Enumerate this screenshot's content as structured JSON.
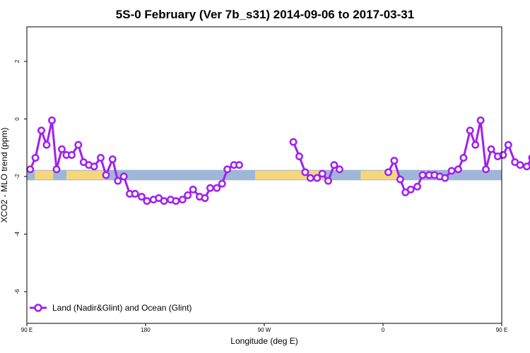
{
  "chart_data": {
    "type": "line",
    "title": "5S-0 February (Ver 7b_s31)   2014-09-06 to 2017-03-31",
    "xlabel": "Longitude (deg E)",
    "ylabel": "XCO2 - MLO trend (ppm)",
    "xlim": [
      90,
      450
    ],
    "ylim": [
      -7.1,
      3.2
    ],
    "x_ticks": [
      {
        "value": 90,
        "label": "90 E"
      },
      {
        "value": 180,
        "label": "180"
      },
      {
        "value": 270,
        "label": "90 W"
      },
      {
        "value": 360,
        "label": "0"
      },
      {
        "value": 450,
        "label": "90 E"
      },
      {
        "value": 540,
        "label": "180"
      }
    ],
    "y_ticks": [
      {
        "value": -6,
        "label": "-6"
      },
      {
        "value": -4,
        "label": "-4"
      },
      {
        "value": -2,
        "label": "-2"
      },
      {
        "value": 0,
        "label": "0"
      },
      {
        "value": 2,
        "label": "2"
      }
    ],
    "background_band": {
      "y_center": -1.95,
      "half_height": 0.18,
      "ocean_color": "#9fb6d7",
      "land_color": "#f5d77a",
      "land_ranges": [
        [
          96,
          110
        ],
        [
          120,
          150
        ],
        [
          263,
          315
        ],
        [
          343,
          372
        ],
        [
          461,
          490
        ]
      ]
    },
    "series": [
      {
        "name": "Land (Nadir&Glint) and Ocean (Glint)",
        "color": "#a020f0",
        "segments": [
          [
            [
              92.5,
              -1.75
            ],
            [
              96.5,
              -1.35
            ],
            [
              101,
              -0.4
            ],
            [
              105,
              -0.9
            ],
            [
              109,
              -0.05
            ],
            [
              112.5,
              -1.75
            ],
            [
              116.5,
              -1.05
            ],
            [
              120,
              -1.25
            ],
            [
              124,
              -1.25
            ],
            [
              129,
              -0.9
            ],
            [
              133,
              -1.5
            ],
            [
              137,
              -1.6
            ],
            [
              141,
              -1.65
            ],
            [
              146,
              -1.35
            ],
            [
              150,
              -1.95
            ],
            [
              155,
              -1.4
            ],
            [
              159,
              -2.15
            ],
            [
              163.5,
              -2.0
            ],
            [
              168,
              -2.6
            ],
            [
              172,
              -2.6
            ],
            [
              177,
              -2.7
            ],
            [
              181,
              -2.85
            ],
            [
              186,
              -2.8
            ],
            [
              190,
              -2.75
            ],
            [
              194,
              -2.85
            ],
            [
              199,
              -2.8
            ],
            [
              203,
              -2.85
            ],
            [
              208,
              -2.8
            ],
            [
              212,
              -2.65
            ],
            [
              216,
              -2.45
            ],
            [
              221,
              -2.7
            ],
            [
              225,
              -2.75
            ],
            [
              229,
              -2.4
            ],
            [
              234,
              -2.4
            ],
            [
              238,
              -2.25
            ],
            [
              242,
              -1.75
            ],
            [
              247,
              -1.6
            ],
            [
              251,
              -1.6
            ]
          ],
          [
            [
              292,
              -0.8
            ],
            [
              296.5,
              -1.3
            ],
            [
              301,
              -1.85
            ],
            [
              305,
              -2.05
            ],
            [
              310,
              -2.05
            ],
            [
              314,
              -1.9
            ],
            [
              318.5,
              -2.15
            ],
            [
              323,
              -1.6
            ],
            [
              327,
              -1.75
            ]
          ],
          [
            [
              364,
              -1.85
            ],
            [
              368.5,
              -1.45
            ],
            [
              373,
              -2.1
            ],
            [
              377,
              -2.55
            ],
            [
              381,
              -2.45
            ],
            [
              386,
              -2.35
            ],
            [
              390,
              -1.95
            ],
            [
              395,
              -1.95
            ],
            [
              399,
              -1.95
            ],
            [
              403,
              -2.0
            ],
            [
              407,
              -2.05
            ],
            [
              412,
              -1.8
            ],
            [
              417,
              -1.75
            ],
            [
              421,
              -1.35
            ],
            [
              426,
              -0.4
            ],
            [
              430,
              -0.9
            ],
            [
              434,
              -0.05
            ],
            [
              438,
              -1.75
            ],
            [
              442,
              -1.05
            ],
            [
              447,
              -1.3
            ],
            [
              451,
              -1.25
            ],
            [
              455,
              -0.9
            ],
            [
              460,
              -1.5
            ],
            [
              464,
              -1.6
            ],
            [
              469,
              -1.65
            ],
            [
              473,
              -1.35
            ],
            [
              477.5,
              -1.95
            ],
            [
              482,
              -1.4
            ],
            [
              486,
              -2.15
            ],
            [
              490.5,
              -2.0
            ]
          ]
        ]
      }
    ]
  },
  "legend": {
    "label": "Land (Nadir&Glint) and Ocean (Glint)"
  }
}
